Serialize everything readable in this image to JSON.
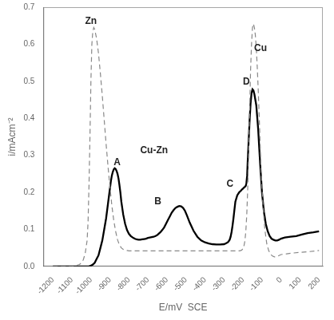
{
  "chart_data": {
    "type": "line",
    "xlabel": "E/mV  SCE",
    "ylabel": "i/mAcm⁻²",
    "xlim": [
      -1250,
      220
    ],
    "ylim": [
      0,
      0.7
    ],
    "xticks": [
      -1200,
      -1100,
      -1000,
      -900,
      -800,
      -700,
      -600,
      -500,
      -400,
      -300,
      -200,
      -100,
      0,
      100,
      200
    ],
    "yticks": [
      {
        "value": 0,
        "label": "0.0"
      },
      0.1,
      0.2,
      0.3,
      0.4,
      0.5,
      0.6,
      0.7
    ],
    "grid": false,
    "series": [
      {
        "color": "#888888",
        "line_style": "dashed",
        "x": [
          -1200,
          -1150,
          -1100,
          -1080,
          -1060,
          -1050,
          -1040,
          -1030,
          -1020,
          -1015,
          -1010,
          -1005,
          -1000,
          -995,
          -990,
          -985,
          -980,
          -970,
          -960,
          -950,
          -940,
          -930,
          -920,
          -910,
          -900,
          -890,
          -880,
          -870,
          -860,
          -850,
          -840,
          -830,
          -820,
          -810,
          -800,
          -780,
          -760,
          -740,
          -700,
          -660,
          -620,
          -580,
          -540,
          -500,
          -460,
          -420,
          -380,
          -340,
          -300,
          -280,
          -260,
          -240,
          -220,
          -210,
          -205,
          -200,
          -195,
          -190,
          -185,
          -180,
          -175,
          -170,
          -165,
          -160,
          -155,
          -150,
          -145,
          -140,
          -135,
          -130,
          -125,
          -120,
          -115,
          -110,
          -105,
          -95,
          -85,
          -75,
          -65,
          -55,
          -45,
          -35,
          -25,
          -15,
          0,
          30,
          60,
          100,
          150,
          200
        ],
        "values": [
          0.0,
          0.0,
          0.0,
          0.002,
          0.005,
          0.01,
          0.018,
          0.035,
          0.07,
          0.12,
          0.22,
          0.35,
          0.5,
          0.6,
          0.635,
          0.645,
          0.64,
          0.615,
          0.575,
          0.52,
          0.46,
          0.395,
          0.33,
          0.27,
          0.215,
          0.165,
          0.125,
          0.095,
          0.072,
          0.058,
          0.05,
          0.046,
          0.044,
          0.043,
          0.042,
          0.042,
          0.042,
          0.042,
          0.042,
          0.042,
          0.042,
          0.042,
          0.042,
          0.042,
          0.042,
          0.042,
          0.042,
          0.042,
          0.042,
          0.042,
          0.042,
          0.042,
          0.042,
          0.043,
          0.045,
          0.048,
          0.055,
          0.068,
          0.095,
          0.14,
          0.21,
          0.31,
          0.42,
          0.53,
          0.6,
          0.645,
          0.655,
          0.645,
          0.625,
          0.59,
          0.54,
          0.48,
          0.41,
          0.335,
          0.26,
          0.165,
          0.1,
          0.062,
          0.043,
          0.033,
          0.028,
          0.026,
          0.026,
          0.028,
          0.032,
          0.034,
          0.036,
          0.038,
          0.04,
          0.043
        ]
      },
      {
        "color": "#000000",
        "line_style": "solid",
        "x": [
          -1200,
          -1100,
          -1050,
          -1010,
          -1000,
          -990,
          -980,
          -970,
          -960,
          -950,
          -940,
          -930,
          -920,
          -910,
          -900,
          -895,
          -890,
          -885,
          -880,
          -875,
          -870,
          -865,
          -860,
          -855,
          -850,
          -845,
          -840,
          -830,
          -820,
          -810,
          -800,
          -790,
          -780,
          -770,
          -760,
          -750,
          -740,
          -730,
          -720,
          -710,
          -700,
          -690,
          -680,
          -670,
          -660,
          -650,
          -640,
          -635,
          -625,
          -615,
          -605,
          -595,
          -585,
          -575,
          -565,
          -555,
          -545,
          -535,
          -525,
          -515,
          -505,
          -495,
          -480,
          -460,
          -440,
          -420,
          -400,
          -380,
          -360,
          -340,
          -320,
          -300,
          -290,
          -280,
          -275,
          -270,
          -265,
          -260,
          -255,
          -250,
          -245,
          -240,
          -230,
          -220,
          -210,
          -205,
          -200,
          -195,
          -190,
          -185,
          -182,
          -178,
          -175,
          -170,
          -165,
          -160,
          -155,
          -150,
          -145,
          -140,
          -130,
          -120,
          -110,
          -100,
          -90,
          -80,
          -70,
          -60,
          -50,
          -40,
          -30,
          -20,
          -10,
          0,
          20,
          50,
          80,
          110,
          140,
          170,
          200
        ],
        "values": [
          0.0,
          0.0,
          0.0,
          0.0,
          0.002,
          0.005,
          0.01,
          0.02,
          0.03,
          0.05,
          0.07,
          0.1,
          0.13,
          0.17,
          0.21,
          0.23,
          0.245,
          0.255,
          0.262,
          0.265,
          0.263,
          0.258,
          0.25,
          0.238,
          0.22,
          0.2,
          0.175,
          0.14,
          0.115,
          0.098,
          0.088,
          0.082,
          0.078,
          0.075,
          0.073,
          0.072,
          0.072,
          0.073,
          0.074,
          0.075,
          0.077,
          0.078,
          0.079,
          0.08,
          0.082,
          0.085,
          0.09,
          0.092,
          0.098,
          0.105,
          0.115,
          0.125,
          0.135,
          0.145,
          0.152,
          0.158,
          0.161,
          0.163,
          0.162,
          0.158,
          0.15,
          0.138,
          0.118,
          0.096,
          0.08,
          0.07,
          0.065,
          0.062,
          0.06,
          0.059,
          0.059,
          0.06,
          0.062,
          0.065,
          0.068,
          0.072,
          0.08,
          0.093,
          0.11,
          0.13,
          0.153,
          0.175,
          0.192,
          0.2,
          0.205,
          0.208,
          0.21,
          0.213,
          0.215,
          0.218,
          0.225,
          0.245,
          0.285,
          0.34,
          0.395,
          0.44,
          0.468,
          0.478,
          0.475,
          0.465,
          0.435,
          0.37,
          0.28,
          0.2,
          0.148,
          0.115,
          0.095,
          0.082,
          0.075,
          0.072,
          0.07,
          0.07,
          0.072,
          0.075,
          0.078,
          0.08,
          0.082,
          0.086,
          0.09,
          0.092,
          0.095
        ]
      }
    ],
    "annotations": [
      {
        "text": "Zn",
        "x": -1000,
        "y": 0.648
      },
      {
        "text": "Cu",
        "x": -108,
        "y": 0.575
      },
      {
        "text": "A",
        "x": -862,
        "y": 0.268
      },
      {
        "text": "B",
        "x": -648,
        "y": 0.162
      },
      {
        "text": "C",
        "x": -268,
        "y": 0.21
      },
      {
        "text": "D",
        "x": -182,
        "y": 0.485
      },
      {
        "text": "Cu-Zn",
        "x": -668,
        "y": 0.3
      }
    ]
  }
}
